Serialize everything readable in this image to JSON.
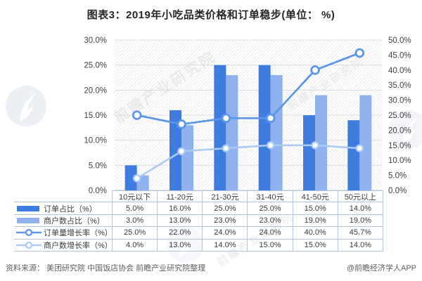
{
  "title": "图表3：2019年小吃品类价格和订单稳步(单位： %)",
  "footer": {
    "source": "资料来源： 美团研究院 中国饭店协会  前瞻产业研究院整理",
    "credit": "@前瞻经济学人APP"
  },
  "watermark": {
    "brand": "前瞻产业研究院"
  },
  "colors": {
    "bar_dark": "#3e7ce0",
    "bar_light": "#8fb2ee",
    "line_dark": "#5b96e8",
    "line_light": "#abcbf4",
    "grid": "#dcdcdc",
    "axis_text": "#404040",
    "table_border": "#b3c4d6",
    "hatch": "#e8e8e8"
  },
  "chart_data": {
    "type": "bar+line combo",
    "title": "图表3：2019年小吃品类价格和订单稳步(单位： %)",
    "categories": [
      "10元以下",
      "11-20元",
      "21-30元",
      "31-40元",
      "41-50元",
      "50元以上"
    ],
    "series": [
      {
        "name": "订单占比（%）",
        "type": "bar",
        "axis": "left",
        "color": "#3e7ce0",
        "values": [
          5.0,
          16.0,
          25.0,
          25.0,
          15.0,
          14.0
        ]
      },
      {
        "name": "商户数占比（%）",
        "type": "bar",
        "axis": "left",
        "color": "#8fb2ee",
        "values": [
          3.0,
          13.0,
          23.0,
          23.0,
          19.0,
          19.0
        ]
      },
      {
        "name": "订单量增长率（%）",
        "type": "line",
        "axis": "right",
        "color": "#5b96e8",
        "values": [
          25.0,
          22.0,
          24.0,
          24.0,
          40.0,
          45.7
        ]
      },
      {
        "name": "商户数增长率（%）",
        "type": "line",
        "axis": "right",
        "color": "#abcbf4",
        "values": [
          4.0,
          13.0,
          14.0,
          15.0,
          15.0,
          14.0
        ]
      }
    ],
    "left_axis": {
      "min": 0,
      "max": 30,
      "step": 5,
      "tick_format": "0.0%"
    },
    "right_axis": {
      "min": 0,
      "max": 50,
      "step": 5,
      "tick_format": "0.0%"
    },
    "grid": true,
    "legend_position": "table-below-chart",
    "value_format": "one-decimal-percent"
  }
}
